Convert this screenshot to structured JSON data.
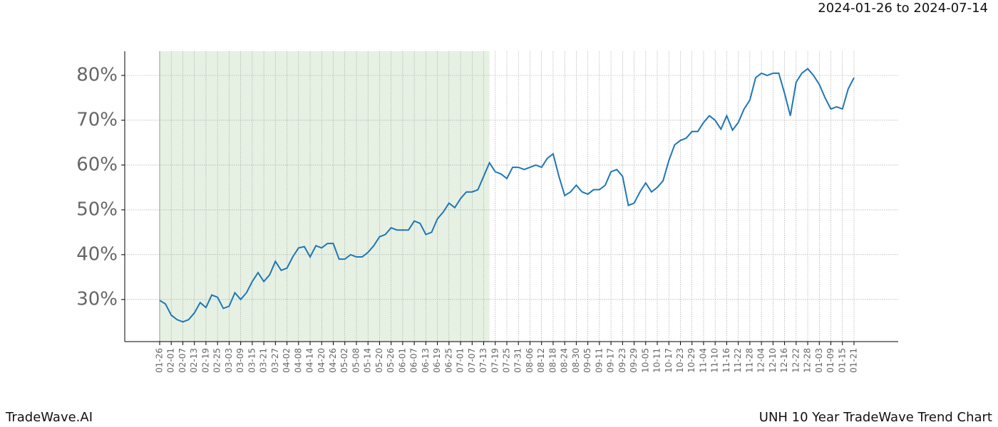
{
  "chart_data": {
    "type": "line",
    "title": "2024-01-26 to 2024-07-14",
    "footer_left": "TradeWave.AI",
    "footer_right": "UNH 10 Year TradeWave Trend Chart",
    "categories": [
      "01-26",
      null,
      "02-01",
      null,
      "02-07",
      null,
      "02-13",
      null,
      "02-19",
      null,
      "02-25",
      null,
      "03-03",
      null,
      "03-09",
      null,
      "03-15",
      null,
      "03-21",
      null,
      "03-27",
      null,
      "04-02",
      null,
      "04-08",
      null,
      "04-14",
      null,
      "04-20",
      null,
      "04-26",
      null,
      "05-02",
      null,
      "05-08",
      null,
      "05-14",
      null,
      "05-20",
      null,
      "05-26",
      null,
      "06-01",
      null,
      "06-07",
      null,
      "06-13",
      null,
      "06-19",
      null,
      "06-25",
      null,
      "07-01",
      null,
      "07-07",
      null,
      "07-13",
      null,
      "07-19",
      null,
      "07-25",
      null,
      "07-31",
      null,
      "08-06",
      null,
      "08-12",
      null,
      "08-18",
      null,
      "08-24",
      null,
      "08-30",
      null,
      "09-05",
      null,
      "09-11",
      null,
      "09-17",
      null,
      "09-23",
      null,
      "09-29",
      null,
      "10-05",
      null,
      "10-11",
      null,
      "10-17",
      null,
      "10-23",
      null,
      "10-29",
      null,
      "11-04",
      null,
      "11-10",
      null,
      "11-16",
      null,
      "11-22",
      null,
      "11-28",
      null,
      "12-04",
      null,
      "12-10",
      null,
      "12-16",
      null,
      "12-22",
      null,
      "12-28",
      null,
      "01-03",
      null,
      "01-09",
      null,
      "01-15",
      null,
      "01-21"
    ],
    "series": [
      {
        "color": "#1f77b4",
        "values": [
          29.8,
          29,
          26.5,
          25.5,
          25,
          25.5,
          27,
          29.3,
          28.2,
          31,
          30.5,
          28,
          28.5,
          31.5,
          30,
          31.5,
          34,
          36,
          34,
          35.5,
          38.5,
          36.5,
          37,
          39.5,
          41.5,
          41.8,
          39.5,
          42,
          41.5,
          42.5,
          42.5,
          39,
          39,
          40,
          39.5,
          39.5,
          40.5,
          42,
          44,
          44.5,
          46,
          45.5,
          45.5,
          45.5,
          47.5,
          47,
          44.5,
          45,
          48,
          49.5,
          51.5,
          50.5,
          52.5,
          54,
          54,
          54.5,
          57.5,
          60.5,
          58.5,
          58,
          57,
          59.5,
          59.5,
          59,
          59.5,
          60,
          59.5,
          61.5,
          62.5,
          57.5,
          53.2,
          54,
          55.5,
          54,
          53.5,
          54.5,
          54.5,
          55.5,
          58.5,
          59,
          57.5,
          51,
          51.5,
          54,
          56,
          54,
          55,
          56.5,
          61,
          64.5,
          65.5,
          66,
          67.5,
          67.5,
          69.5,
          71,
          70,
          68,
          71,
          67.8,
          69.5,
          72.5,
          74.5,
          79.5,
          80.5,
          80,
          80.5,
          80.5,
          76,
          71,
          78.5,
          80.5,
          81.5,
          80,
          78,
          75,
          72.5,
          73,
          72.5,
          77,
          79.5
        ]
      }
    ],
    "shaded": {
      "from": 0,
      "to": 57,
      "color": "#e6f1e4"
    },
    "ylim": [
      20.6,
      85.4
    ],
    "yticks": [
      {
        "value": 30,
        "label": "30%"
      },
      {
        "value": 40,
        "label": "40%"
      },
      {
        "value": 50,
        "label": "50%"
      },
      {
        "value": 60,
        "label": "60%"
      },
      {
        "value": 70,
        "label": "70%"
      },
      {
        "value": 80,
        "label": "80%"
      }
    ],
    "grid": true
  }
}
